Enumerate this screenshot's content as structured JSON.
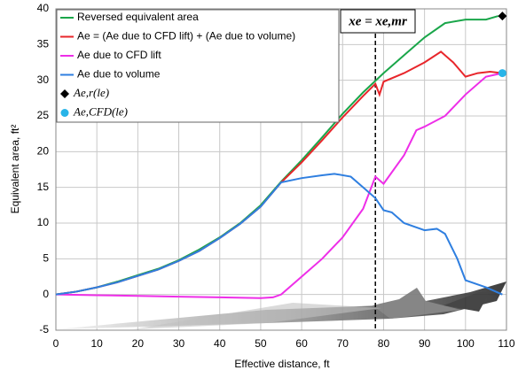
{
  "chart_data": {
    "type": "line",
    "xlabel": "Effective distance, ft",
    "ylabel": "Equivalent area, ft²",
    "xlim": [
      0,
      110
    ],
    "xticks": [
      0,
      10,
      20,
      30,
      40,
      50,
      60,
      70,
      80,
      90,
      100,
      110
    ],
    "ylim": [
      -5,
      40
    ],
    "yticks": [
      -5,
      0,
      5,
      10,
      15,
      20,
      25,
      30,
      35,
      40
    ],
    "grid": true,
    "legend": "upper left",
    "series": [
      {
        "name": "Reversed equivalent area",
        "color": "#1aa64a",
        "x": [
          0,
          5,
          10,
          15,
          20,
          25,
          30,
          35,
          40,
          45,
          50,
          55,
          60,
          65,
          70,
          75,
          80,
          85,
          90,
          95,
          100,
          105,
          108
        ],
        "values": [
          0,
          0.4,
          1,
          1.8,
          2.7,
          3.6,
          4.8,
          6.3,
          8,
          10,
          12.5,
          15.8,
          18.8,
          22,
          25.3,
          28.3,
          31,
          33.5,
          36,
          38,
          38.5,
          38.5,
          39
        ]
      },
      {
        "name": "Ae = (Ae due to CFD lift) + (Ae due to volume)",
        "color": "#e8262b",
        "x": [
          0,
          5,
          10,
          15,
          20,
          25,
          30,
          35,
          40,
          45,
          50,
          55,
          60,
          65,
          70,
          75,
          78,
          79,
          80,
          85,
          90,
          94,
          97,
          100,
          103,
          106,
          109
        ],
        "values": [
          0,
          0.4,
          1,
          1.7,
          2.6,
          3.5,
          4.7,
          6.1,
          7.9,
          9.9,
          12.3,
          15.7,
          18.5,
          21.6,
          24.8,
          27.8,
          29.5,
          28,
          29.8,
          31,
          32.5,
          34,
          32.5,
          30.5,
          31,
          31.2,
          31
        ]
      },
      {
        "name": "Ae due to CFD lift",
        "color": "#ee2ee8",
        "x": [
          0,
          10,
          20,
          30,
          40,
          50,
          53,
          55,
          60,
          65,
          70,
          75,
          78,
          80,
          85,
          88,
          90,
          95,
          100,
          105,
          109
        ],
        "values": [
          0,
          -0.1,
          -0.2,
          -0.3,
          -0.4,
          -0.5,
          -0.4,
          0,
          2.5,
          5,
          8,
          12,
          16.5,
          15.5,
          19.5,
          23,
          23.5,
          25,
          28,
          30.5,
          31
        ]
      },
      {
        "name": "Ae due to volume",
        "color": "#2f7fe0",
        "x": [
          0,
          5,
          10,
          15,
          20,
          25,
          30,
          35,
          40,
          45,
          50,
          55,
          60,
          65,
          68,
          72,
          75,
          78,
          80,
          82,
          85,
          90,
          93,
          95,
          98,
          100,
          105,
          109
        ],
        "values": [
          0,
          0.4,
          1,
          1.7,
          2.6,
          3.5,
          4.7,
          6.1,
          7.9,
          9.9,
          12.3,
          15.7,
          16.3,
          16.7,
          16.9,
          16.5,
          15,
          13.5,
          11.8,
          11.5,
          10,
          9,
          9.2,
          8.5,
          5,
          2,
          1,
          0
        ]
      }
    ],
    "markers": [
      {
        "name": "Ae,r(le)",
        "shape": "diamond",
        "color": "#000000",
        "x": 109,
        "y": 39
      },
      {
        "name": "Ae,CFD(le)",
        "shape": "circle",
        "color": "#28b4e8",
        "x": 109,
        "y": 31
      }
    ],
    "annotation": {
      "text": "xe = xe,mr",
      "x": 78
    }
  }
}
